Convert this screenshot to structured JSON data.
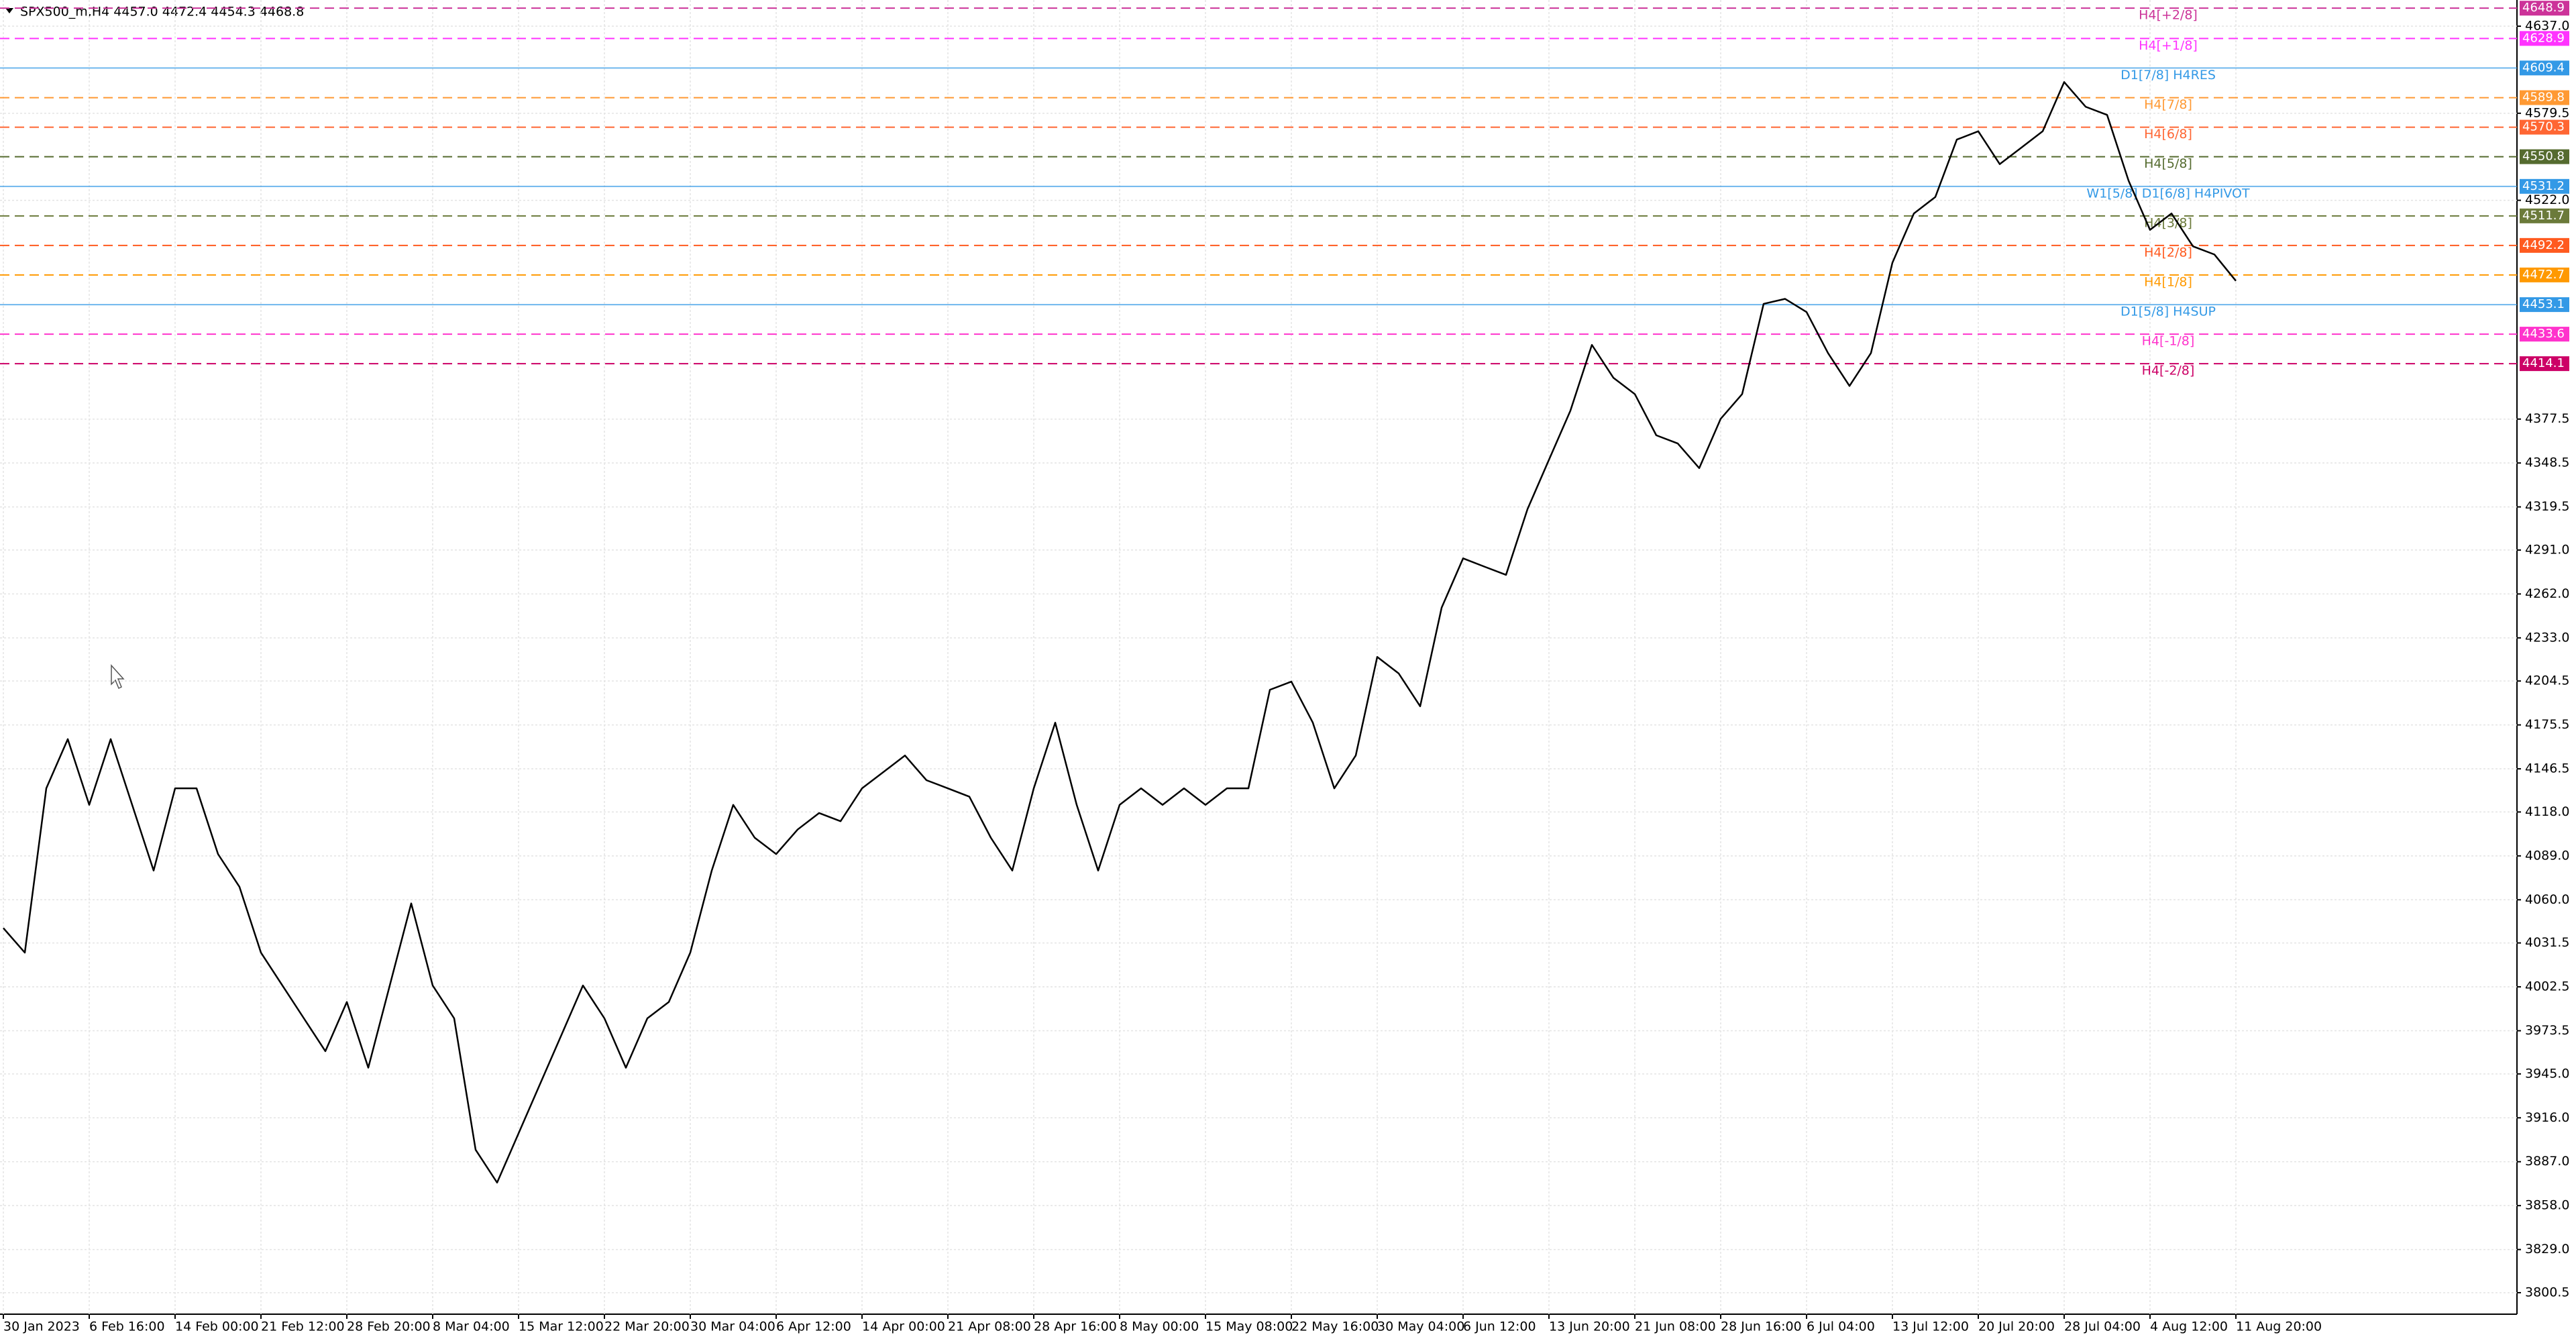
{
  "chart_data": {
    "type": "line",
    "title": "SPX500_m,H4  4457.0 4472.4 4454.3 4468.8",
    "color": "#000000",
    "grid": true,
    "ylim": [
      3786.3,
      4654.3
    ],
    "yticks": [
      {
        "value": 4637,
        "label": "4637.0"
      },
      4579.5,
      {
        "value": 4522,
        "label": "4522.0"
      },
      4377.5,
      4348.5,
      4319.5,
      {
        "value": 4291,
        "label": "4291.0"
      },
      {
        "value": 4262,
        "label": "4262.0"
      },
      {
        "value": 4233,
        "label": "4233.0"
      },
      4204.5,
      4175.5,
      4146.5,
      {
        "value": 4118,
        "label": "4118.0"
      },
      {
        "value": 4089,
        "label": "4089.0"
      },
      {
        "value": 4060,
        "label": "4060.0"
      },
      4031.5,
      4002.5,
      3973.5,
      {
        "value": 3945,
        "label": "3945.0"
      },
      {
        "value": 3916,
        "label": "3916.0"
      },
      {
        "value": 3887,
        "label": "3887.0"
      },
      {
        "value": 3858,
        "label": "3858.0"
      },
      {
        "value": 3829,
        "label": "3829.0"
      },
      3800.5
    ],
    "categories": [
      "30 Jan 2023",
      null,
      null,
      null,
      "6 Feb 16:00",
      null,
      null,
      null,
      "14 Feb 00:00",
      null,
      null,
      null,
      "21 Feb 12:00",
      null,
      null,
      null,
      "28 Feb 20:00",
      null,
      null,
      null,
      "8 Mar 04:00",
      null,
      null,
      null,
      "15 Mar 12:00",
      null,
      null,
      null,
      "22 Mar 20:00",
      null,
      null,
      null,
      "30 Mar 04:00",
      null,
      null,
      null,
      "6 Apr 12:00",
      null,
      null,
      null,
      "14 Apr 00:00",
      null,
      null,
      null,
      "21 Apr 08:00",
      null,
      null,
      null,
      "28 Apr 16:00",
      null,
      null,
      null,
      "8 May 00:00",
      null,
      null,
      null,
      "15 May 08:00",
      null,
      null,
      null,
      "22 May 16:00",
      null,
      null,
      null,
      "30 May 04:00",
      null,
      null,
      null,
      "6 Jun 12:00",
      null,
      null,
      null,
      "13 Jun 20:00",
      null,
      null,
      null,
      "21 Jun 08:00",
      null,
      null,
      null,
      "28 Jun 16:00",
      null,
      null,
      null,
      "6 Jul 04:00",
      null,
      null,
      null,
      "13 Jul 12:00",
      null,
      null,
      null,
      "20 Jul 20:00",
      null,
      null,
      null,
      "28 Jul 04:00",
      null,
      null,
      null,
      "4 Aug 12:00",
      null,
      null,
      null,
      "11 Aug 20:00"
    ],
    "values": [
      4041.3,
      4025.1,
      4133.6,
      4166.1,
      4122.7,
      4166.1,
      4122.7,
      4079.3,
      4133.6,
      4133.6,
      4090.2,
      4068.5,
      4025.1,
      4003.4,
      3981.7,
      3960.0,
      3992.5,
      3949.1,
      4003.4,
      4057.6,
      4003.4,
      3981.7,
      3894.9,
      3873.2,
      3905.7,
      3938.3,
      3970.8,
      4003.4,
      3981.7,
      3949.1,
      3981.7,
      3992.5,
      4025.1,
      4079.3,
      4122.7,
      4101.0,
      4090.2,
      4106.4,
      4117.3,
      4111.9,
      4133.6,
      4144.4,
      4155.3,
      4139.0,
      4133.6,
      4128.1,
      4101.0,
      4079.3,
      4133.6,
      4177.0,
      4122.7,
      4079.3,
      4122.7,
      4133.6,
      4122.7,
      4133.6,
      4122.7,
      4133.6,
      4133.6,
      4198.7,
      4204.1,
      4177.0,
      4133.6,
      4155.3,
      4220.4,
      4209.5,
      4187.8,
      4252.9,
      4285.5,
      4280.0,
      4274.6,
      4318.0,
      4350.6,
      4383.1,
      4426.5,
      4404.8,
      4394.0,
      4366.8,
      4361.4,
      4345.1,
      4377.7,
      4394.0,
      4453.6,
      4456.9,
      4448.2,
      4421.1,
      4399.4,
      4421.1,
      4480.8,
      4513.3,
      4524.2,
      4562.1,
      4567.6,
      4545.9,
      4556.7,
      4567.6,
      4600.1,
      4583.8,
      4578.4,
      4535.0,
      4502.5,
      4513.3,
      4491.6,
      4486.2,
      4468.8
    ],
    "levels": [
      {
        "name": "H4[+2/8]",
        "value": 4648.9,
        "color": "#cc3399",
        "style": "dashed"
      },
      {
        "name": "H4[+1/8]",
        "value": 4628.9,
        "color": "#ff33ff",
        "style": "dashed"
      },
      {
        "name": "D1[7/8] H4RES",
        "value": 4609.4,
        "color": "#3399e6",
        "style": "solid"
      },
      {
        "name": "H4[7/8]",
        "value": 4589.8,
        "color": "#ff9933",
        "style": "dashed"
      },
      {
        "name": "H4[6/8]",
        "value": 4570.3,
        "color": "#ff6633",
        "style": "dashed"
      },
      {
        "name": "H4[5/8]",
        "value": 4550.8,
        "color": "#556b2f",
        "style": "dashed"
      },
      {
        "name": "W1[5/8] D1[6/8] H4PIVOT",
        "value": 4531.2,
        "color": "#3399e6",
        "style": "solid"
      },
      {
        "name": "H4[3/8]",
        "value": 4511.7,
        "color": "#6b7a3a",
        "style": "dashed"
      },
      {
        "name": "H4[2/8]",
        "value": 4492.2,
        "color": "#ff5a1f",
        "style": "dashed"
      },
      {
        "name": "H4[1/8]",
        "value": 4472.7,
        "color": "#ff9900",
        "style": "dashed"
      },
      {
        "name": "D1[5/8] H4SUP",
        "value": 4453.1,
        "color": "#3399e6",
        "style": "solid"
      },
      {
        "name": "H4[-1/8]",
        "value": 4433.6,
        "color": "#ff33cc",
        "style": "dashed"
      },
      {
        "name": "H4[-2/8]",
        "value": 4414.1,
        "color": "#cc0066",
        "style": "dashed"
      }
    ]
  }
}
